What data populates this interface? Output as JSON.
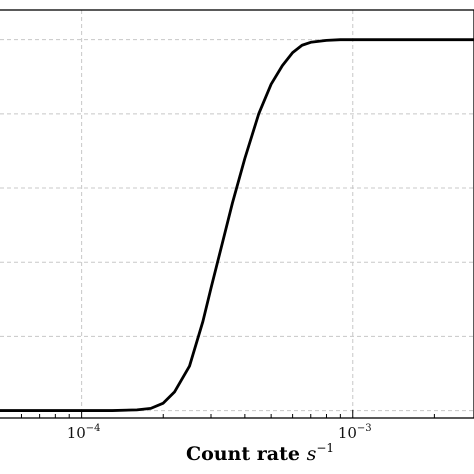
{
  "chart_data": {
    "type": "line",
    "title": "",
    "xlabel_main": "Count rate ",
    "xlabel_unit": "s",
    "xlabel_exp": "−1",
    "ylabel": "",
    "x_scale": "log",
    "xlim": [
      5e-05,
      0.0028
    ],
    "ylim": [
      -0.02,
      1.08
    ],
    "grid": true,
    "x_major_ticks": [
      {
        "value": 0.0001,
        "label_base": "10",
        "label_exp": "−4"
      },
      {
        "value": 0.001,
        "label_base": "10",
        "label_exp": "−3"
      }
    ],
    "x_minor_ticks": [
      6e-05,
      7e-05,
      8e-05,
      9e-05,
      0.0002,
      0.0003,
      0.0004,
      0.0005,
      0.0006,
      0.0007,
      0.0008,
      0.0009,
      0.002
    ],
    "y_grid_values": [
      0.0,
      0.2,
      0.4,
      0.6,
      0.8,
      1.0
    ],
    "series": [
      {
        "color": "#000000",
        "x": [
          5e-05,
          8e-05,
          0.0001,
          0.00013,
          0.00016,
          0.00018,
          0.0002,
          0.00022,
          0.00025,
          0.00028,
          0.0003,
          0.00033,
          0.00036,
          0.0004,
          0.00045,
          0.0005,
          0.00055,
          0.0006,
          0.00065,
          0.0007,
          0.0008,
          0.0009,
          0.001,
          0.0015,
          0.0028
        ],
        "y": [
          0.0,
          0.0,
          0.0,
          0.0,
          0.002,
          0.006,
          0.02,
          0.05,
          0.12,
          0.24,
          0.33,
          0.45,
          0.56,
          0.68,
          0.8,
          0.88,
          0.93,
          0.965,
          0.985,
          0.993,
          0.998,
          1.0,
          1.0,
          1.0,
          1.0
        ]
      }
    ]
  }
}
